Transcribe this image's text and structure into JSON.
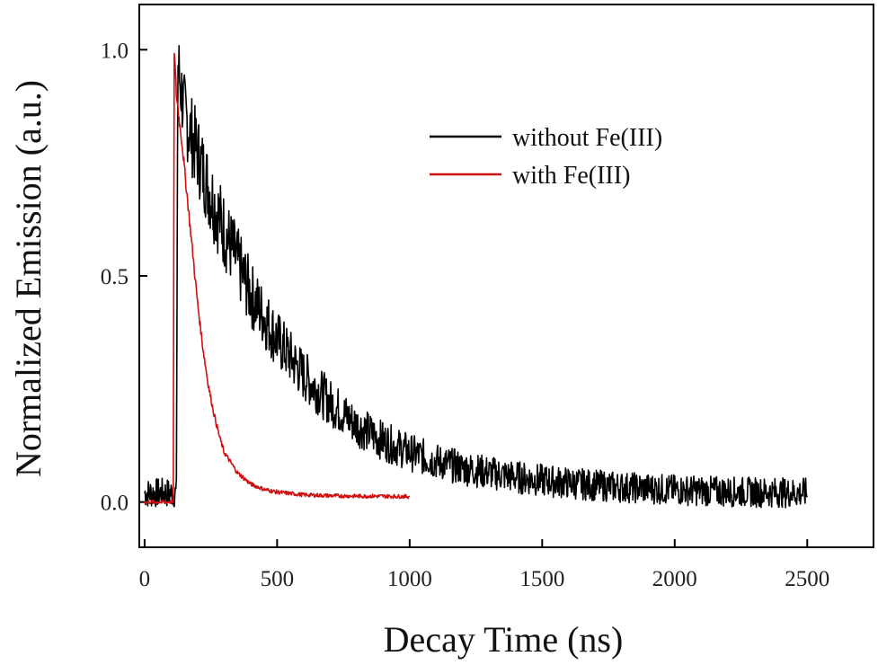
{
  "chart_data": {
    "type": "line",
    "title": "",
    "xlabel": "Decay Time (ns)",
    "ylabel": "Normalized Emission (a.u.)",
    "xlim": [
      -20,
      2750
    ],
    "ylim": [
      -0.1,
      1.1
    ],
    "x_ticks": [
      0,
      500,
      1000,
      1500,
      2000,
      2500
    ],
    "x_tick_labels": [
      "0",
      "500",
      "1000",
      "1500",
      "2000",
      "2500"
    ],
    "y_ticks": [
      0.0,
      0.5,
      1.0
    ],
    "y_tick_labels": [
      "0.0",
      "0.5",
      "1.0"
    ],
    "grid": false,
    "legend_position": "top-right",
    "series": [
      {
        "name": "without Fe(III)",
        "color": "#000000",
        "x": [
          0,
          100,
          120,
          125,
          150,
          200,
          250,
          300,
          350,
          400,
          450,
          500,
          550,
          600,
          650,
          700,
          750,
          800,
          900,
          1000,
          1100,
          1200,
          1300,
          1400,
          1500,
          1600,
          1700,
          1800,
          1900,
          2000,
          2100,
          2200,
          2300,
          2400,
          2500
        ],
        "y": [
          0.02,
          0.02,
          0.02,
          0.97,
          0.86,
          0.77,
          0.68,
          0.6,
          0.53,
          0.46,
          0.41,
          0.36,
          0.32,
          0.28,
          0.25,
          0.22,
          0.195,
          0.17,
          0.135,
          0.11,
          0.09,
          0.075,
          0.065,
          0.055,
          0.048,
          0.042,
          0.037,
          0.033,
          0.03,
          0.027,
          0.025,
          0.023,
          0.022,
          0.021,
          0.02
        ]
      },
      {
        "name": "with Fe(III)",
        "color": "#d01010",
        "x": [
          0,
          100,
          108,
          112,
          120,
          140,
          160,
          180,
          200,
          220,
          240,
          260,
          280,
          300,
          350,
          400,
          450,
          500,
          600,
          700,
          800,
          900,
          1000
        ],
        "y": [
          0.0,
          0.0,
          0.0,
          1.0,
          0.9,
          0.8,
          0.68,
          0.56,
          0.44,
          0.34,
          0.26,
          0.2,
          0.15,
          0.11,
          0.065,
          0.04,
          0.028,
          0.022,
          0.016,
          0.014,
          0.013,
          0.013,
          0.012
        ]
      }
    ]
  }
}
